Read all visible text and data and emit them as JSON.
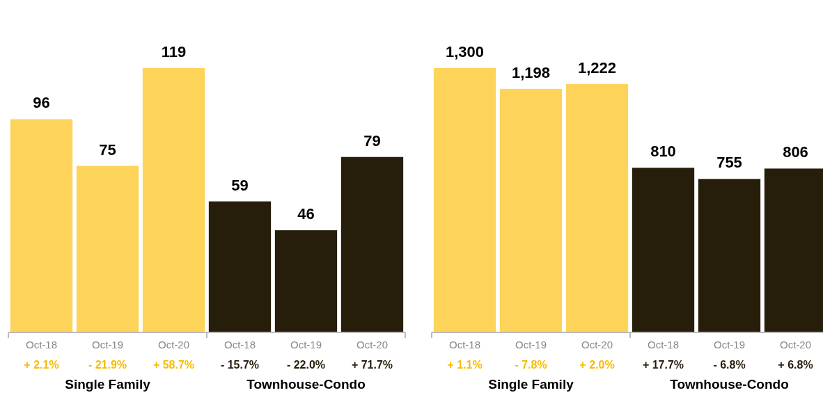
{
  "chart_data": [
    {
      "type": "bar",
      "categories": [
        "Oct-18",
        "Oct-19",
        "Oct-20",
        "Oct-18",
        "Oct-19",
        "Oct-20"
      ],
      "stacked": true,
      "series": [
        {
          "color": "#fdd35a",
          "values": [
            96,
            75,
            119,
            null,
            null,
            null
          ],
          "value_labels": [
            "96",
            "75",
            "119",
            null,
            null,
            null
          ]
        },
        {
          "color": "#261d0b",
          "values": [
            null,
            null,
            null,
            59,
            46,
            79
          ],
          "value_labels": [
            null,
            null,
            null,
            "59",
            "46",
            "79"
          ]
        }
      ],
      "annotations": [
        "+ 2.1%",
        "- 21.9%",
        "+ 58.7%",
        "- 15.7%",
        "- 22.0%",
        "+ 71.7%",
        "Single Family",
        "Townhouse-Condo"
      ]
    },
    {
      "type": "bar",
      "categories": [
        "Oct-18",
        "Oct-19",
        "Oct-20",
        "Oct-18",
        "Oct-19",
        "Oct-20"
      ],
      "stacked": true,
      "series": [
        {
          "color": "#fdd35a",
          "values": [
            1300,
            1198,
            1222,
            null,
            null,
            null
          ],
          "value_labels": [
            "1,300",
            "1,198",
            "1,222",
            null,
            null,
            null
          ]
        },
        {
          "color": "#261d0b",
          "values": [
            null,
            null,
            null,
            810,
            755,
            806
          ],
          "value_labels": [
            null,
            null,
            null,
            "810",
            "755",
            "806"
          ]
        }
      ],
      "annotations": [
        "+ 1.1%",
        "- 7.8%",
        "+ 2.0%",
        "+ 17.7%",
        "- 6.8%",
        "+ 6.8%",
        "Single Family",
        "Townhouse-Condo"
      ]
    }
  ]
}
